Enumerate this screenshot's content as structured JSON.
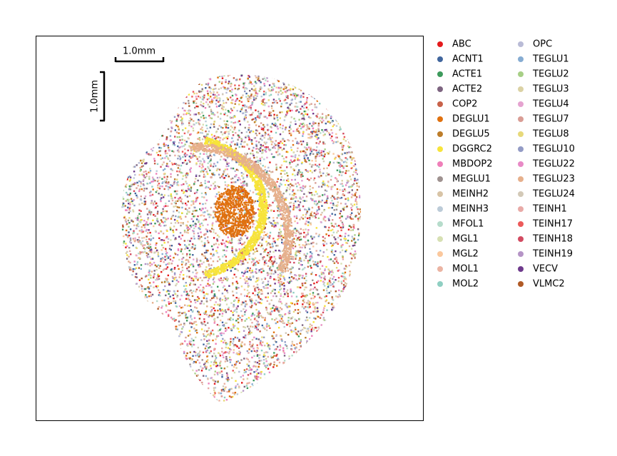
{
  "chart_data": {
    "type": "scatter",
    "scalebar_x_label": "1.0mm",
    "scalebar_y_label": "1.0mm",
    "series": [
      {
        "name": "ABC",
        "color": "#e41a1c"
      },
      {
        "name": "ACNT1",
        "color": "#41669d"
      },
      {
        "name": "ACTE1",
        "color": "#3d9a5c"
      },
      {
        "name": "ACTE2",
        "color": "#7d6480"
      },
      {
        "name": "COP2",
        "color": "#c8624a"
      },
      {
        "name": "DEGLU1",
        "color": "#e0710f"
      },
      {
        "name": "DEGLU5",
        "color": "#bd7d2a"
      },
      {
        "name": "DGGRC2",
        "color": "#f7e43b"
      },
      {
        "name": "MBDOP2",
        "color": "#ef7fb9"
      },
      {
        "name": "MEGLU1",
        "color": "#9f9290"
      },
      {
        "name": "MEINH2",
        "color": "#d8c4a6"
      },
      {
        "name": "MEINH3",
        "color": "#bccbd8"
      },
      {
        "name": "MFOL1",
        "color": "#b6dccb"
      },
      {
        "name": "MGL1",
        "color": "#d7e0b3"
      },
      {
        "name": "MGL2",
        "color": "#fbc89d"
      },
      {
        "name": "MOL1",
        "color": "#ebb4a3"
      },
      {
        "name": "MOL2",
        "color": "#8fcfc2"
      },
      {
        "name": "OPC",
        "color": "#b9bbd6"
      },
      {
        "name": "TEGLU1",
        "color": "#86acd2"
      },
      {
        "name": "TEGLU2",
        "color": "#a7cf86"
      },
      {
        "name": "TEGLU3",
        "color": "#dbd2a4"
      },
      {
        "name": "TEGLU4",
        "color": "#e5a3d0"
      },
      {
        "name": "TEGLU7",
        "color": "#d99d95"
      },
      {
        "name": "TEGLU8",
        "color": "#e7d97a"
      },
      {
        "name": "TEGLU10",
        "color": "#939bc5"
      },
      {
        "name": "TEGLU22",
        "color": "#e88ac6"
      },
      {
        "name": "TEGLU23",
        "color": "#e6b08c"
      },
      {
        "name": "TEGLU24",
        "color": "#d3c9b7"
      },
      {
        "name": "TEINH1",
        "color": "#e8aaa7"
      },
      {
        "name": "TEINH17",
        "color": "#ec5a5a"
      },
      {
        "name": "TEINH18",
        "color": "#d24b61"
      },
      {
        "name": "TEINH19",
        "color": "#b594c6"
      },
      {
        "name": "VECV",
        "color": "#6e3a8c"
      },
      {
        "name": "VLMC2",
        "color": "#b05a26"
      }
    ]
  }
}
